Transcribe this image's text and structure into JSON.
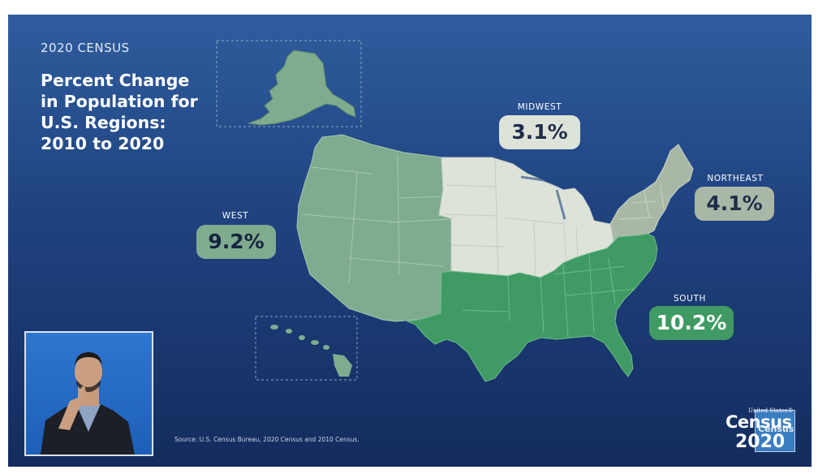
{
  "header": {
    "kicker": "2020 CENSUS",
    "title_lines": [
      "Percent Change",
      "in Population for",
      "U.S. Regions:",
      "2010 to 2020"
    ]
  },
  "regions": [
    {
      "id": "west",
      "label": "WEST",
      "value": "9.2%",
      "color": "#7fab8f"
    },
    {
      "id": "midwest",
      "label": "MIDWEST",
      "value": "3.1%",
      "color": "#dde3d9"
    },
    {
      "id": "northeast",
      "label": "NORTHEAST",
      "value": "4.1%",
      "color": "#a9b8a6"
    },
    {
      "id": "south",
      "label": "SOUTH",
      "value": "10.2%",
      "color": "#3f9a63"
    }
  ],
  "source": "Source: U.S. Census Bureau, 2020 Census and 2010 Census.",
  "logo": {
    "top": "United States®",
    "word": "Census",
    "year": "2020",
    "tile_word": "Census"
  },
  "colors": {
    "background_top": "#2f5d9e",
    "background_bottom": "#142c5e"
  }
}
